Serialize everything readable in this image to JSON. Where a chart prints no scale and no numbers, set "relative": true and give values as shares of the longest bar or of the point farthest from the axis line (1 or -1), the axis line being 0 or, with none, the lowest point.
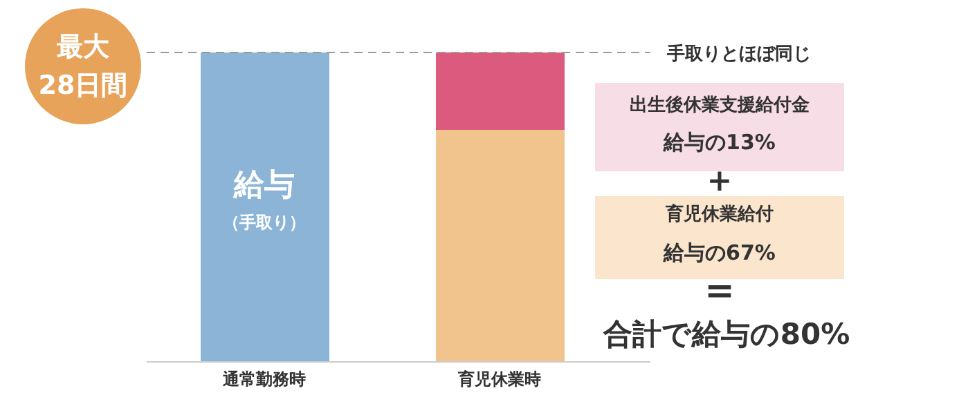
{
  "chart_data": {
    "type": "bar",
    "relative": true,
    "stacked": true,
    "categories": [
      "通常勤務時",
      "育児休業時"
    ],
    "series": [
      {
        "color": "#8cb4d6",
        "values": [
          1,
          null
        ]
      },
      {
        "color": "#f1c48e",
        "values": [
          null,
          0.75
        ]
      },
      {
        "color": "#dc5a7e",
        "values": [
          null,
          0.25
        ]
      }
    ],
    "ref_lines": [
      {
        "axis": "y",
        "value": 1,
        "label": "手取りとほぼ同じ",
        "color": "#999999",
        "line_style": "dashed"
      }
    ],
    "annotations": [
      "最大",
      "28日間",
      "給与",
      "（手取り）",
      "出生後休業支援給付金",
      "給与の13%",
      "+",
      "育児休業給付",
      "給与の67%",
      "=",
      "合計で給与の80%"
    ]
  }
}
